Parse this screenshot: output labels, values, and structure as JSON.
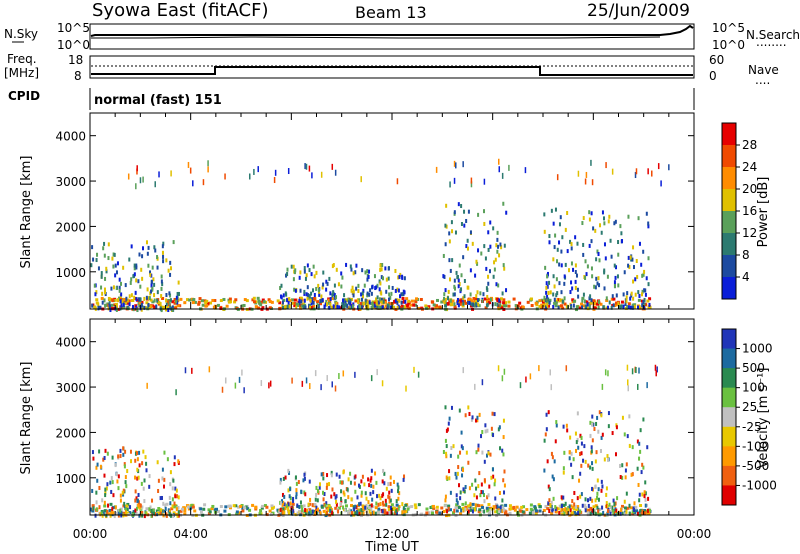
{
  "header": {
    "station": "Syowa East (fitACF)",
    "beam": "Beam 13",
    "date": "25/Jun/2009"
  },
  "nsky_panel": {
    "left_label": "N.Sky",
    "right_label": "N.Search",
    "right_legend": "........",
    "ticks_left": [
      "10^5",
      "10^0"
    ],
    "ticks_right": [
      "10^5",
      "10^0"
    ]
  },
  "freq_panel": {
    "left_label_line1": "Freq.",
    "left_label_line2": "[MHz]",
    "ticks_left": [
      "18",
      "8"
    ],
    "right_label": "Nave",
    "right_legend": "....",
    "ticks_right": [
      "60",
      "0"
    ]
  },
  "cpid": {
    "label": "CPID",
    "value": "normal (fast) 151"
  },
  "colorbars": {
    "power": {
      "title": "Power [dB]",
      "labels": [
        "28",
        "24",
        "20",
        "16",
        "12",
        "8",
        "4"
      ],
      "colors": [
        "#e60000",
        "#f04a00",
        "#ff8c00",
        "#e0c000",
        "#5aa05a",
        "#2c7a70",
        "#1c4aa0",
        "#0a1ed8"
      ]
    },
    "velocity": {
      "title": "Velocity [m s⁻¹]",
      "labels": [
        "1000",
        "500",
        "100",
        "25",
        "-25",
        "-100",
        "-500",
        "-1000"
      ],
      "colors": [
        "#2035b8",
        "#1c6aa0",
        "#2a8a50",
        "#6ac040",
        "#c0c0c0",
        "#e8c800",
        "#ff9a00",
        "#f06010",
        "#e00000"
      ]
    }
  },
  "chart_data": [
    {
      "type": "heatmap",
      "panel": "power",
      "ylabel": "Slant Range [km]",
      "y_ticks": [
        "1000",
        "2000",
        "3000",
        "4000"
      ],
      "ylim": [
        180,
        4500
      ],
      "x_ticks": [
        "00:00",
        "04:00",
        "08:00",
        "12:00",
        "16:00",
        "20:00",
        "00:00"
      ],
      "colorbar": "Power [dB]",
      "echo_regions": [
        {
          "t_start": 0.0,
          "t_end": 3.5,
          "range_low": 200,
          "range_high": 1700
        },
        {
          "t_start": 7.5,
          "t_end": 12.5,
          "range_low": 250,
          "range_high": 1200
        },
        {
          "t_start": 14.0,
          "t_end": 16.5,
          "range_low": 300,
          "range_high": 2600
        },
        {
          "t_start": 18.0,
          "t_end": 22.2,
          "range_low": 250,
          "range_high": 2500
        }
      ]
    },
    {
      "type": "heatmap",
      "panel": "velocity",
      "ylabel": "Slant Range [km]",
      "y_ticks": [
        "1000",
        "2000",
        "3000",
        "4000"
      ],
      "ylim": [
        180,
        4500
      ],
      "x_ticks": [
        "00:00",
        "04:00",
        "08:00",
        "12:00",
        "16:00",
        "20:00",
        "00:00"
      ],
      "xlabel": "Time UT",
      "colorbar": "Velocity [m s⁻¹]"
    }
  ]
}
